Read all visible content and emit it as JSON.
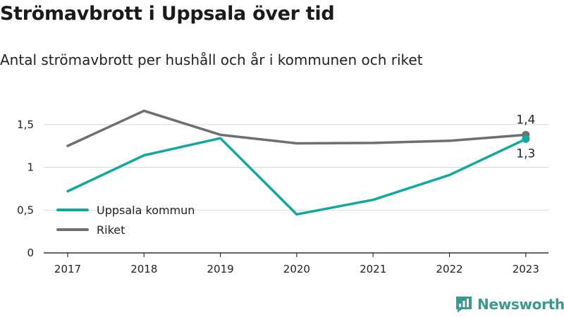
{
  "title": "Strömavbrott i Uppsala över tid",
  "subtitle": "Antal strömavbrott per hushåll och år i kommunen och riket",
  "brand": {
    "name": "Newsworthy",
    "icon": "newsworthy-logo-icon"
  },
  "colors": {
    "uppsala": "#13a89e",
    "riket": "#6e6e73",
    "grid": "#d9d9d9",
    "axis": "#333333",
    "brand": "#3a9a8c"
  },
  "chart_data": {
    "type": "line",
    "categories": [
      "2017",
      "2018",
      "2019",
      "2020",
      "2021",
      "2022",
      "2023"
    ],
    "series": [
      {
        "name": "Uppsala kommun",
        "values": [
          0.72,
          1.14,
          1.34,
          0.45,
          0.62,
          0.91,
          1.33
        ]
      },
      {
        "name": "Riket",
        "values": [
          1.25,
          1.66,
          1.38,
          1.28,
          1.285,
          1.31,
          1.38
        ]
      }
    ],
    "ylim": [
      0,
      1.8
    ],
    "yticks": [
      0,
      0.5,
      1,
      1.5
    ],
    "ytick_labels": [
      "0",
      "0,5",
      "1",
      "1,5"
    ],
    "end_labels": {
      "Riket": "1,4",
      "Uppsala kommun": "1,3"
    },
    "legend_position": "bottom-left",
    "grid": true
  }
}
